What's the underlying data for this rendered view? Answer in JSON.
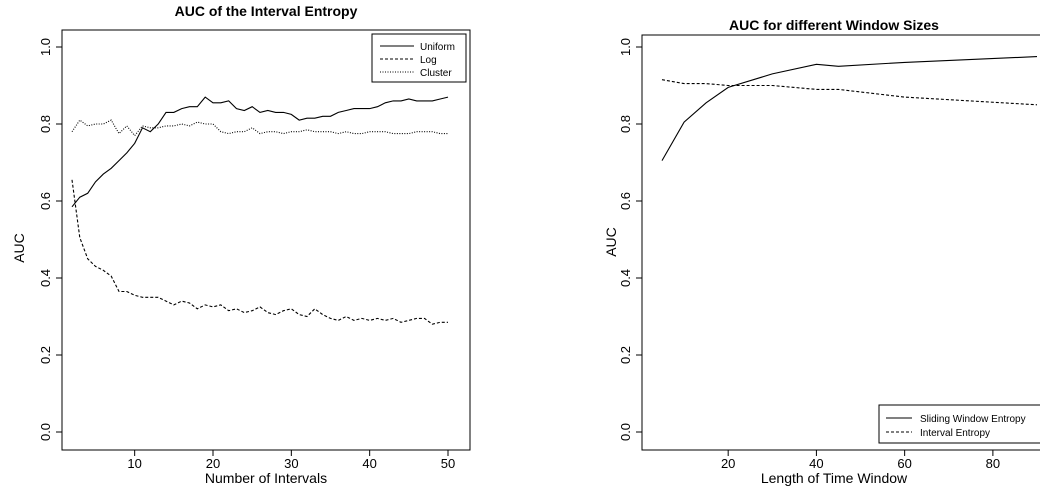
{
  "chart_data": [
    {
      "id": "left",
      "type": "line",
      "title": "AUC of the Interval Entropy",
      "xlabel": "Number of Intervals",
      "ylabel": "AUC",
      "xlim": [
        2,
        50
      ],
      "ylim": [
        0,
        1
      ],
      "xticks": [
        10,
        20,
        30,
        40,
        50
      ],
      "yticks": [
        0.0,
        0.2,
        0.4,
        0.6,
        0.8,
        1.0
      ],
      "ytick_labels": [
        "0.0",
        "0.2",
        "0.4",
        "0.6",
        "0.8",
        "1.0"
      ],
      "grid": false,
      "legend_position": "top-right",
      "series": [
        {
          "name": "Uniform",
          "dash": "solid",
          "x": [
            2,
            3,
            4,
            5,
            6,
            7,
            8,
            9,
            10,
            11,
            12,
            13,
            14,
            15,
            16,
            17,
            18,
            19,
            20,
            21,
            22,
            23,
            24,
            25,
            26,
            27,
            28,
            29,
            30,
            31,
            32,
            33,
            34,
            35,
            36,
            37,
            38,
            39,
            40,
            41,
            42,
            43,
            44,
            45,
            46,
            47,
            48,
            49,
            50
          ],
          "y": [
            0.585,
            0.61,
            0.62,
            0.65,
            0.67,
            0.685,
            0.705,
            0.725,
            0.75,
            0.79,
            0.78,
            0.8,
            0.83,
            0.83,
            0.84,
            0.845,
            0.845,
            0.87,
            0.855,
            0.855,
            0.86,
            0.84,
            0.835,
            0.845,
            0.83,
            0.835,
            0.83,
            0.83,
            0.825,
            0.81,
            0.815,
            0.815,
            0.82,
            0.82,
            0.83,
            0.835,
            0.84,
            0.84,
            0.84,
            0.845,
            0.855,
            0.86,
            0.86,
            0.865,
            0.86,
            0.86,
            0.86,
            0.865,
            0.87
          ]
        },
        {
          "name": "Log",
          "dash": "dashed",
          "x": [
            2,
            3,
            4,
            5,
            6,
            7,
            8,
            9,
            10,
            11,
            12,
            13,
            14,
            15,
            16,
            17,
            18,
            19,
            20,
            21,
            22,
            23,
            24,
            25,
            26,
            27,
            28,
            29,
            30,
            31,
            32,
            33,
            34,
            35,
            36,
            37,
            38,
            39,
            40,
            41,
            42,
            43,
            44,
            45,
            46,
            47,
            48,
            49,
            50
          ],
          "y": [
            0.655,
            0.505,
            0.45,
            0.43,
            0.42,
            0.405,
            0.365,
            0.365,
            0.355,
            0.35,
            0.35,
            0.35,
            0.34,
            0.33,
            0.34,
            0.335,
            0.32,
            0.33,
            0.325,
            0.33,
            0.315,
            0.32,
            0.31,
            0.315,
            0.325,
            0.31,
            0.305,
            0.315,
            0.32,
            0.305,
            0.3,
            0.32,
            0.305,
            0.295,
            0.29,
            0.3,
            0.29,
            0.295,
            0.29,
            0.295,
            0.29,
            0.295,
            0.285,
            0.29,
            0.295,
            0.295,
            0.28,
            0.285,
            0.285
          ]
        },
        {
          "name": "Cluster",
          "dash": "dotted",
          "x": [
            2,
            3,
            4,
            5,
            6,
            7,
            8,
            9,
            10,
            11,
            12,
            13,
            14,
            15,
            16,
            17,
            18,
            19,
            20,
            21,
            22,
            23,
            24,
            25,
            26,
            27,
            28,
            29,
            30,
            31,
            32,
            33,
            34,
            35,
            36,
            37,
            38,
            39,
            40,
            41,
            42,
            43,
            44,
            45,
            46,
            47,
            48,
            49,
            50
          ],
          "y": [
            0.78,
            0.81,
            0.795,
            0.8,
            0.8,
            0.81,
            0.775,
            0.795,
            0.77,
            0.795,
            0.79,
            0.79,
            0.795,
            0.795,
            0.8,
            0.795,
            0.805,
            0.8,
            0.8,
            0.78,
            0.775,
            0.78,
            0.78,
            0.79,
            0.775,
            0.78,
            0.78,
            0.775,
            0.78,
            0.78,
            0.785,
            0.78,
            0.78,
            0.78,
            0.775,
            0.78,
            0.775,
            0.775,
            0.78,
            0.78,
            0.78,
            0.775,
            0.775,
            0.775,
            0.78,
            0.78,
            0.78,
            0.775,
            0.775
          ]
        }
      ]
    },
    {
      "id": "right",
      "type": "line",
      "title": "AUC for different Window Sizes",
      "xlabel": "Length of Time Window",
      "ylabel": "AUC",
      "xlim": [
        5,
        90
      ],
      "ylim": [
        0,
        1
      ],
      "xticks": [
        20,
        40,
        60,
        80
      ],
      "yticks": [
        0.0,
        0.2,
        0.4,
        0.6,
        0.8,
        1.0
      ],
      "ytick_labels": [
        "0.0",
        "0.2",
        "0.4",
        "0.6",
        "0.8",
        "1.0"
      ],
      "grid": false,
      "legend_position": "bottom-right",
      "series": [
        {
          "name": "Sliding Window Entropy",
          "dash": "solid",
          "x": [
            5,
            10,
            15,
            20,
            30,
            40,
            45,
            60,
            90
          ],
          "y": [
            0.705,
            0.805,
            0.855,
            0.895,
            0.93,
            0.955,
            0.95,
            0.96,
            0.975
          ]
        },
        {
          "name": "Interval Entropy",
          "dash": "dashed",
          "x": [
            5,
            10,
            15,
            20,
            30,
            40,
            45,
            60,
            90
          ],
          "y": [
            0.915,
            0.905,
            0.905,
            0.9,
            0.9,
            0.89,
            0.89,
            0.87,
            0.85
          ]
        }
      ]
    }
  ]
}
